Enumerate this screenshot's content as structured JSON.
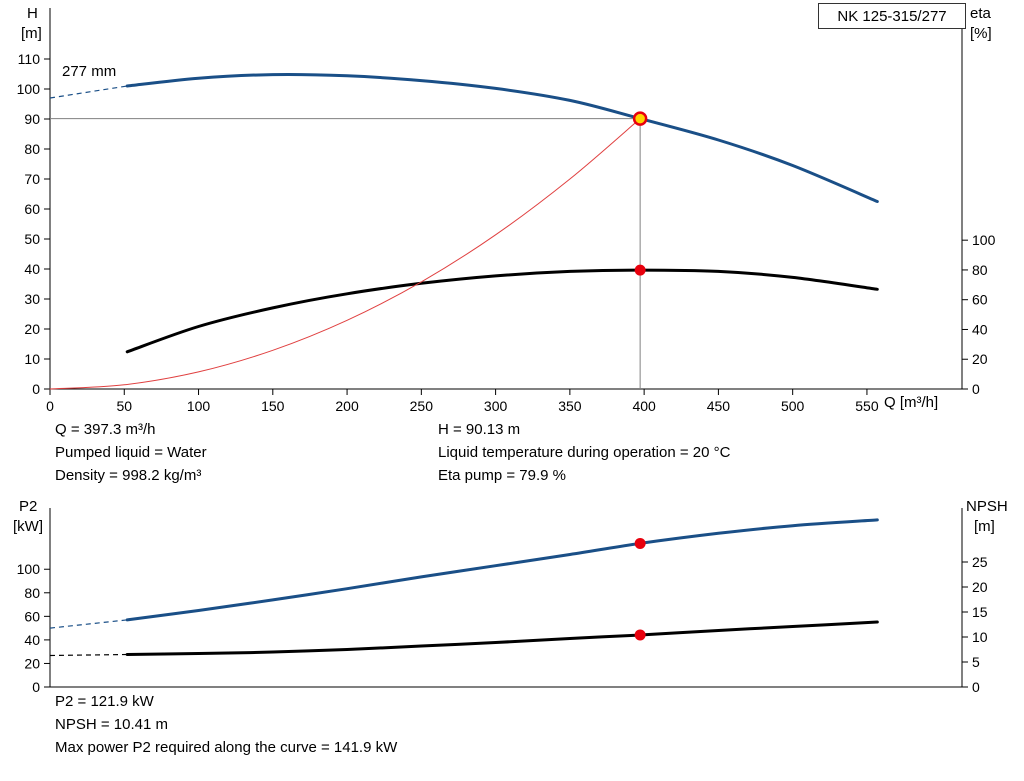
{
  "colors": {
    "curve_blue": "#1a4f87",
    "curve_black": "#000000",
    "system_red": "#e04040",
    "marker_red": "#e8000d",
    "marker_yellow": "#ffd400",
    "guide": "#808080",
    "axis": "#000000"
  },
  "operating_point_info": {
    "col_left": [
      "Q = 397.3 m³/h",
      "Pumped liquid = Water",
      "Density = 998.2 kg/m³"
    ],
    "col_right": [
      "H = 90.13 m",
      "Liquid temperature during operation = 20 °C",
      "Eta pump = 79.9 %"
    ]
  },
  "power_info": [
    "P2 = 121.9 kW",
    "NPSH = 10.41 m",
    "Max power P2 required along the curve = 141.9 kW"
  ],
  "chart_data": [
    {
      "id": "qh-chart",
      "type": "line",
      "title": "NK 125-315/277",
      "labels": {
        "left_title": "H",
        "left_unit": "[m]",
        "right_title": "eta",
        "right_unit": "[%]",
        "x_title": "Q [m³/h]",
        "curve_label": "277 mm"
      },
      "xlabel": "Q [m³/h]",
      "ylabel_left": "H [m]",
      "ylabel_right": "eta [%]",
      "x_axis": {
        "min": 0,
        "max": 614,
        "ticks": [
          0,
          50,
          100,
          150,
          200,
          250,
          300,
          350,
          400,
          450,
          500,
          550
        ]
      },
      "left_axis": {
        "min": 0,
        "max": 127,
        "ticks": [
          0,
          10,
          20,
          30,
          40,
          50,
          60,
          70,
          80,
          90,
          100,
          110
        ]
      },
      "right_axis": {
        "min": 0,
        "max": 256,
        "ticks": [
          0,
          20,
          40,
          60,
          80,
          100
        ]
      },
      "series": [
        {
          "name": "head-curve-277mm",
          "axis": "left",
          "color": "curve_blue",
          "width": 3,
          "points": [
            [
              52,
              101
            ],
            [
              100,
              103.6
            ],
            [
              150,
              104.8
            ],
            [
              200,
              104.4
            ],
            [
              250,
              102.8
            ],
            [
              300,
              100.2
            ],
            [
              350,
              96.2
            ],
            [
              397.3,
              90.13
            ],
            [
              450,
              83
            ],
            [
              500,
              74.5
            ],
            [
              557,
              62.5
            ]
          ],
          "dashed_extension": [
            [
              0,
              97
            ],
            [
              52,
              101
            ]
          ]
        },
        {
          "name": "efficiency-curve",
          "axis": "right",
          "color": "curve_black",
          "width": 3,
          "points": [
            [
              52,
              25
            ],
            [
              100,
              42
            ],
            [
              150,
              54.5
            ],
            [
              200,
              64
            ],
            [
              250,
              71
            ],
            [
              300,
              76
            ],
            [
              350,
              79
            ],
            [
              397.3,
              79.9
            ],
            [
              450,
              79
            ],
            [
              500,
              75
            ],
            [
              557,
              67
            ]
          ]
        },
        {
          "name": "system-curve",
          "axis": "left",
          "color": "system_red",
          "width": 1,
          "points": [
            [
              0,
              0
            ],
            [
              50,
              1.4
            ],
            [
              100,
              5.7
            ],
            [
              150,
              12.9
            ],
            [
              200,
              22.9
            ],
            [
              250,
              35.7
            ],
            [
              300,
              51.4
            ],
            [
              350,
              70
            ],
            [
              397.3,
              90.13
            ]
          ]
        }
      ],
      "guides": {
        "duty_q": 397.3,
        "duty_h": 90.13
      },
      "markers": [
        {
          "name": "duty-point-qh",
          "q": 397.3,
          "value": 90.13,
          "axis": "left",
          "style": "yellow-red"
        },
        {
          "name": "duty-point-eta",
          "q": 397.3,
          "value": 79.9,
          "axis": "right",
          "style": "red"
        }
      ]
    },
    {
      "id": "power-npsh-chart",
      "type": "line",
      "title": "",
      "labels": {
        "left_title": "P2",
        "left_unit": "[kW]",
        "right_title": "NPSH",
        "right_unit": "[m]"
      },
      "xlabel": "Q [m³/h]",
      "ylabel_left": "P2 [kW]",
      "ylabel_right": "NPSH [m]",
      "x_axis": {
        "min": 0,
        "max": 614,
        "ticks": []
      },
      "left_axis": {
        "min": 0,
        "max": 152,
        "ticks": [
          0,
          20,
          40,
          60,
          80,
          100
        ]
      },
      "right_axis": {
        "min": 0,
        "max": 35.8,
        "ticks": [
          0,
          5,
          10,
          15,
          20,
          25
        ]
      },
      "series": [
        {
          "name": "p2-curve",
          "axis": "left",
          "color": "curve_blue",
          "width": 3,
          "points": [
            [
              52,
              57
            ],
            [
              100,
              65
            ],
            [
              150,
              74
            ],
            [
              200,
              83.5
            ],
            [
              250,
              93.5
            ],
            [
              300,
              103
            ],
            [
              350,
              112.5
            ],
            [
              397.3,
              121.9
            ],
            [
              450,
              130.5
            ],
            [
              500,
              137
            ],
            [
              557,
              141.9
            ]
          ],
          "dashed_extension": [
            [
              0,
              50
            ],
            [
              52,
              57
            ]
          ]
        },
        {
          "name": "npsh-curve",
          "axis": "right",
          "color": "curve_black",
          "width": 3,
          "points": [
            [
              52,
              6.5
            ],
            [
              100,
              6.7
            ],
            [
              150,
              7.0
            ],
            [
              200,
              7.5
            ],
            [
              250,
              8.2
            ],
            [
              300,
              8.9
            ],
            [
              350,
              9.7
            ],
            [
              397.3,
              10.41
            ],
            [
              450,
              11.3
            ],
            [
              500,
              12.1
            ],
            [
              557,
              13.0
            ]
          ],
          "dashed_extension": [
            [
              0,
              6.3
            ],
            [
              52,
              6.5
            ]
          ]
        }
      ],
      "markers": [
        {
          "name": "duty-point-p2",
          "q": 397.3,
          "value": 121.9,
          "axis": "left",
          "style": "red"
        },
        {
          "name": "duty-point-npsh",
          "q": 397.3,
          "value": 10.41,
          "axis": "right",
          "style": "red"
        }
      ]
    }
  ]
}
